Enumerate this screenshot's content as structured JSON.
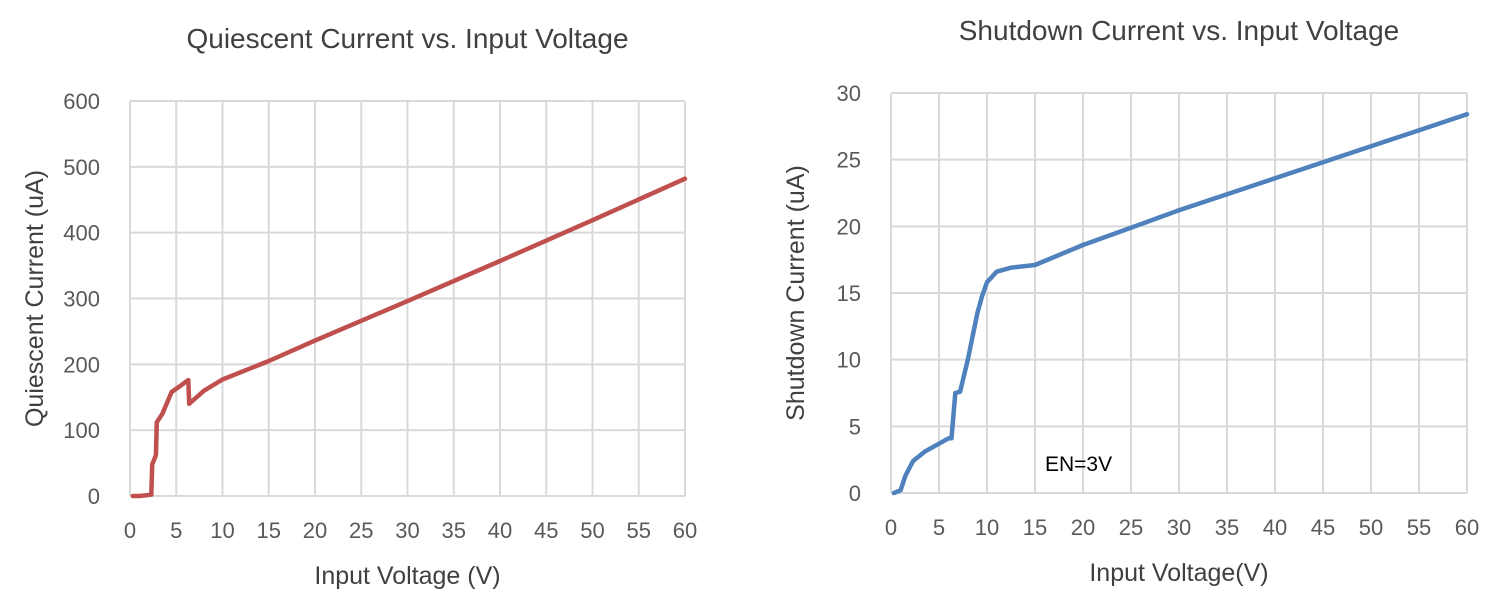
{
  "chart_data": [
    {
      "type": "line",
      "title": "Quiescent Current vs. Input Voltage",
      "xlabel": "Input Voltage (V)",
      "ylabel": "Quiescent Current (uA)",
      "xlim": [
        0,
        60
      ],
      "ylim": [
        0,
        600
      ],
      "xticks": [
        "0",
        "5",
        "10",
        "15",
        "20",
        "25",
        "30",
        "35",
        "40",
        "45",
        "50",
        "55",
        "60"
      ],
      "yticks": [
        "0",
        "100",
        "200",
        "300",
        "400",
        "500",
        "600"
      ],
      "grid": true,
      "color": "#C0504D",
      "annotation": "",
      "series": [
        {
          "x": [
            0.3,
            1.0,
            2.3,
            2.4,
            2.6,
            2.8,
            2.9,
            3.5,
            4.5,
            5.5,
            6.3,
            6.4,
            6.8,
            8.0,
            10.0,
            15.0,
            20.0,
            30.0,
            40.0,
            50.0,
            60.0
          ],
          "y": [
            0,
            0,
            2,
            48,
            55,
            62,
            112,
            125,
            158,
            168,
            176,
            140,
            145,
            160,
            177,
            205,
            236,
            296,
            357,
            419,
            482
          ]
        }
      ]
    },
    {
      "type": "line",
      "title": "Shutdown Current vs. Input Voltage",
      "xlabel": "Input Voltage(V)",
      "ylabel": "Shutdown Current (uA)",
      "xlim": [
        0,
        60
      ],
      "ylim": [
        0,
        30
      ],
      "xticks": [
        "0",
        "5",
        "10",
        "15",
        "20",
        "25",
        "30",
        "35",
        "40",
        "45",
        "50",
        "55",
        "60"
      ],
      "yticks": [
        "0",
        "5",
        "10",
        "15",
        "20",
        "25",
        "30"
      ],
      "grid": true,
      "color": "#4F81BD",
      "annotation": "EN=3V",
      "series": [
        {
          "x": [
            0.3,
            1.0,
            1.5,
            2.3,
            3.5,
            5.0,
            6.0,
            6.3,
            6.5,
            6.7,
            7.2,
            8.0,
            9.0,
            9.5,
            10.0,
            11.0,
            12.5,
            15.0,
            20.0,
            25.0,
            30.0,
            40.0,
            50.0,
            60.0
          ],
          "y": [
            0,
            0.2,
            1.3,
            2.4,
            3.1,
            3.7,
            4.1,
            4.1,
            5.8,
            7.5,
            7.6,
            10.0,
            13.5,
            14.8,
            15.8,
            16.6,
            16.9,
            17.1,
            18.6,
            19.9,
            21.2,
            23.6,
            26.0,
            28.4
          ]
        }
      ]
    }
  ]
}
